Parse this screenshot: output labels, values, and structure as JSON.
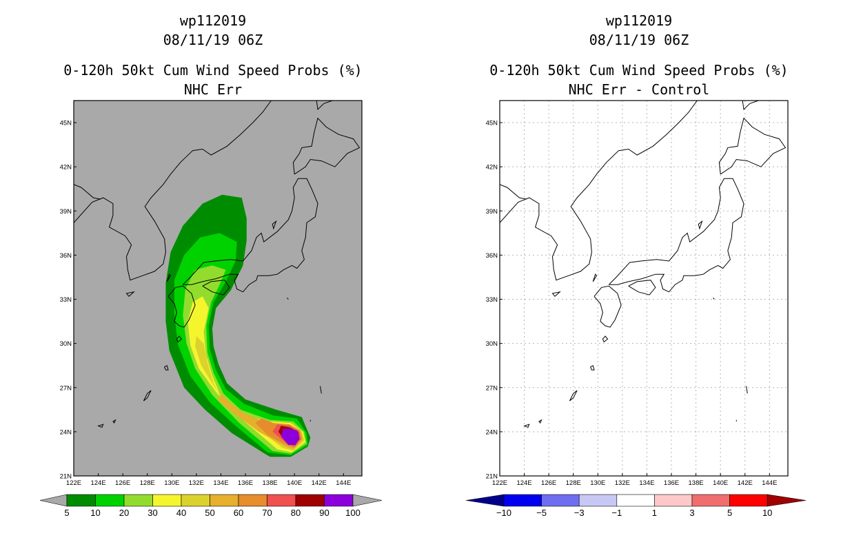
{
  "chart_data": [
    {
      "type": "filled-contour-map",
      "title": [
        "wp112019",
        "08/11/19 06Z",
        "0-120h 50kt Cum Wind Speed Probs (%)",
        "NHC Err"
      ],
      "units": "%",
      "x_ticks": [
        "122E",
        "124E",
        "126E",
        "128E",
        "130E",
        "132E",
        "134E",
        "136E",
        "138E",
        "140E",
        "142E",
        "144E"
      ],
      "y_ticks": [
        "21N",
        "24N",
        "27N",
        "30N",
        "33N",
        "36N",
        "39N",
        "42N",
        "45N"
      ],
      "xlim": [
        122,
        145.5
      ],
      "ylim": [
        21,
        46.5
      ],
      "background_color": "#a9a9a9",
      "levels": [
        5,
        10,
        20,
        30,
        40,
        50,
        60,
        70,
        80,
        90,
        100
      ],
      "colors": [
        "#008c00",
        "#00d200",
        "#92dc2e",
        "#f5f52e",
        "#dcd22e",
        "#e6af2d",
        "#e68c2d",
        "#f05050",
        "#a00000",
        "#8c00dc"
      ],
      "track_note": "probability swath from ~23N 140E curving north-west to ~40N 134E"
    },
    {
      "type": "filled-contour-map",
      "title": [
        "wp112019",
        "08/11/19 06Z",
        "0-120h 50kt Cum Wind Speed Probs (%)",
        "NHC Err - Control"
      ],
      "units": "%",
      "x_ticks": [
        "122E",
        "124E",
        "126E",
        "128E",
        "130E",
        "132E",
        "134E",
        "136E",
        "138E",
        "140E",
        "142E",
        "144E"
      ],
      "y_ticks": [
        "21N",
        "24N",
        "27N",
        "30N",
        "33N",
        "36N",
        "39N",
        "42N",
        "45N"
      ],
      "xlim": [
        122,
        145.5
      ],
      "ylim": [
        21,
        46.5
      ],
      "background_color": "#ffffff",
      "gridlines": true,
      "levels": [
        "-10",
        "-5",
        "-3",
        "-1",
        "1",
        "3",
        "5",
        "10"
      ],
      "colors": [
        "#00008c",
        "#0000f0",
        "#6e6ef0",
        "#c8c8f5",
        "#ffffff",
        "#ffc8c8",
        "#f06e6e",
        "#ff0000",
        "#a00000"
      ]
    }
  ]
}
